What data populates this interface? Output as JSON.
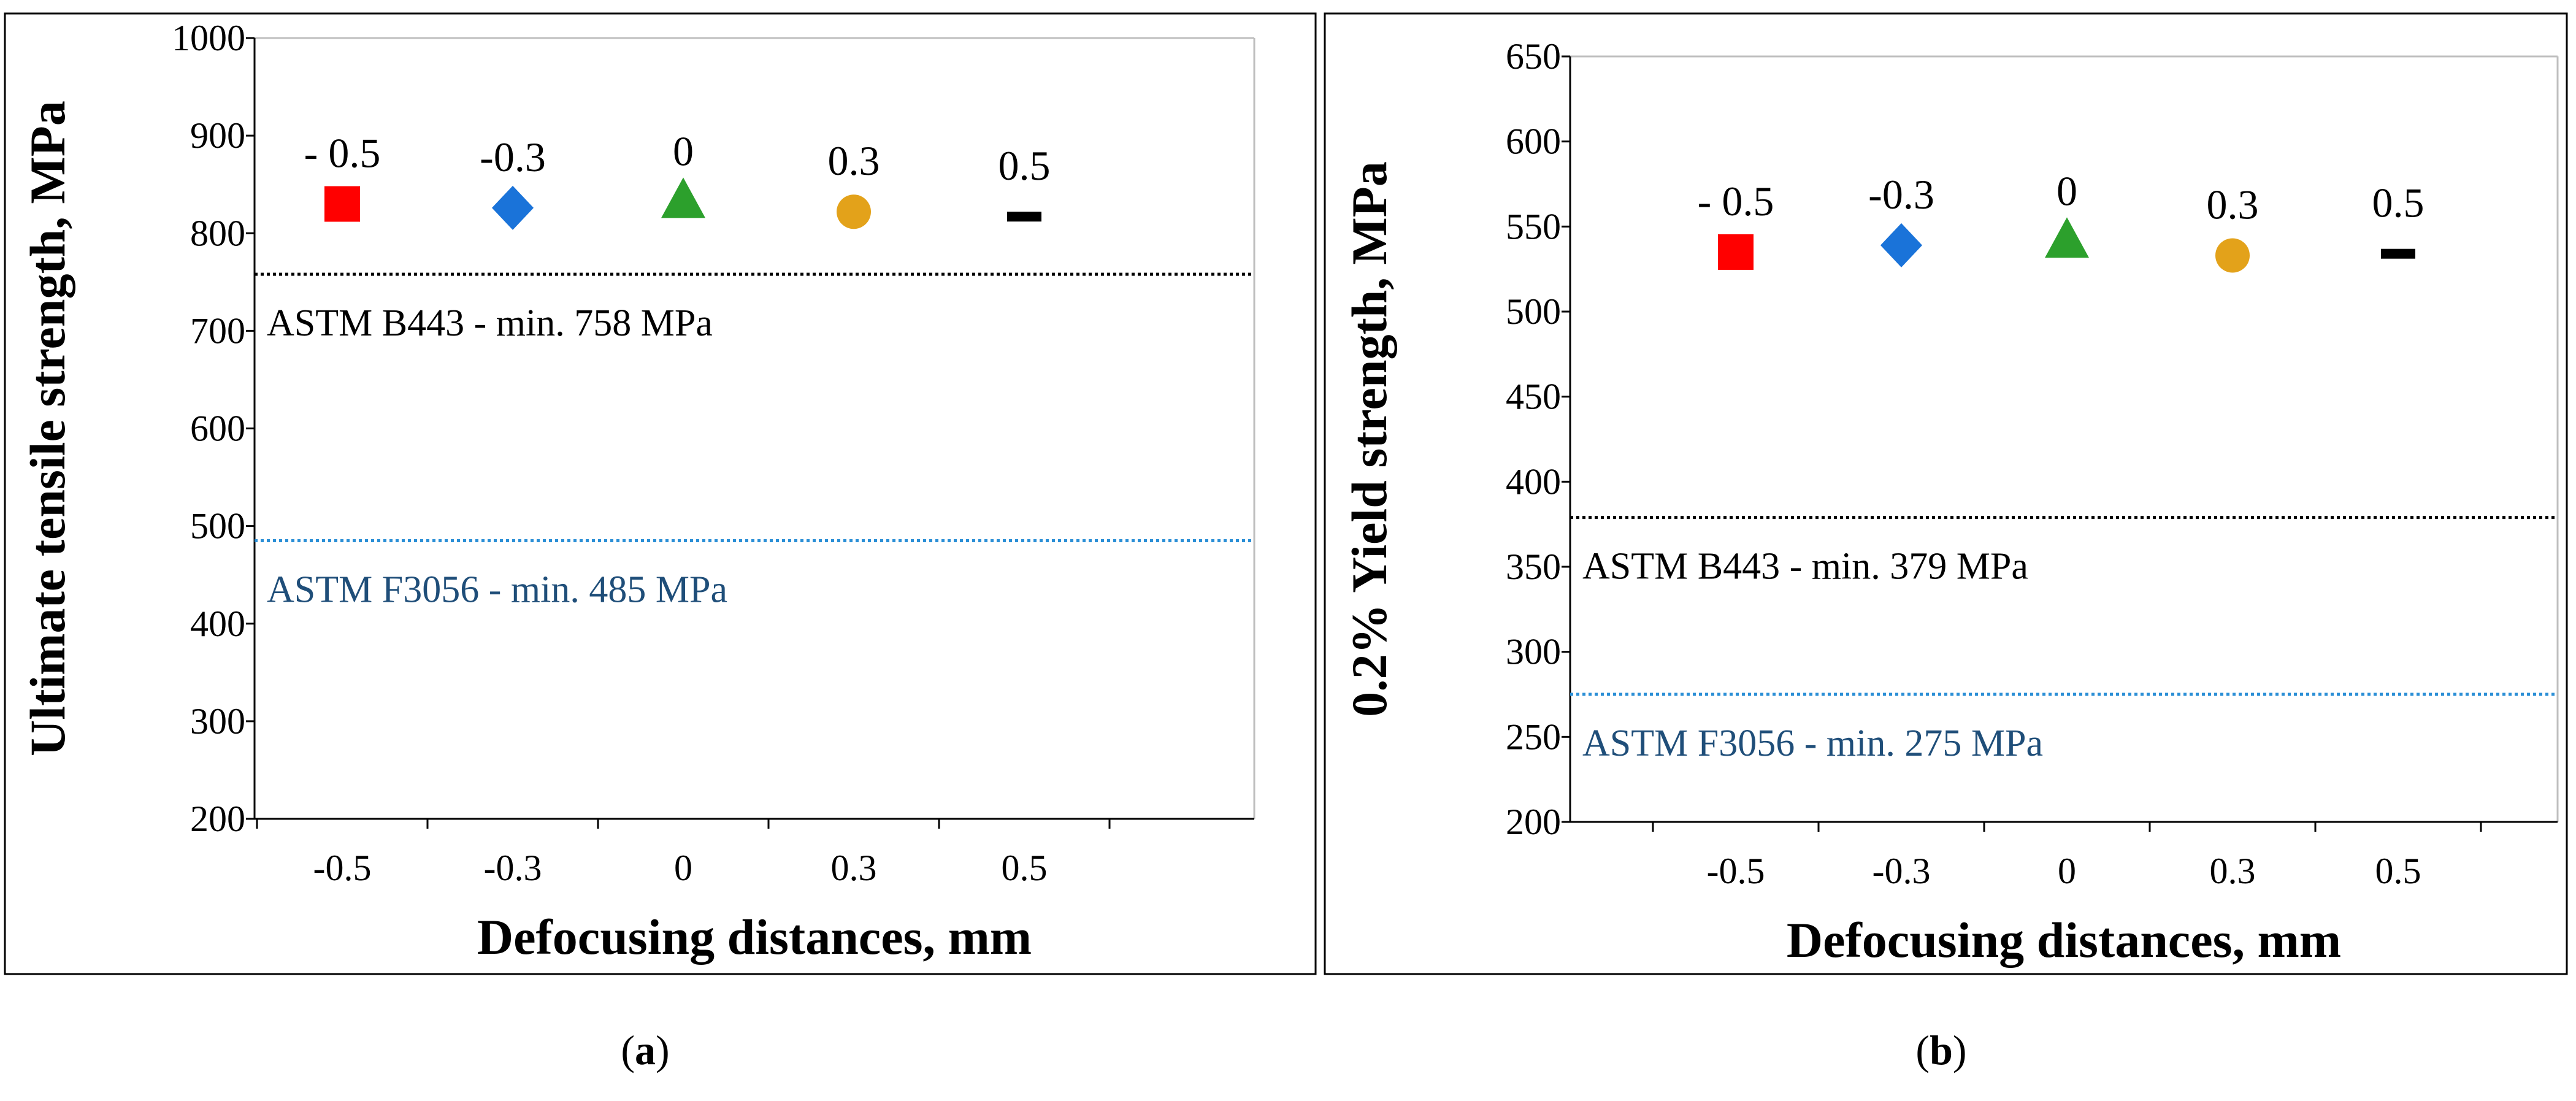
{
  "panels": [
    {
      "id": "a",
      "caption": "(a)",
      "caption_letter": "a",
      "chart_data": {
        "type": "scatter",
        "title": "",
        "xlabel": "Defocusing distances, mm",
        "ylabel": "Ultimate tensile strength, MPa",
        "ylim": [
          200,
          1000
        ],
        "ytick_step": 100,
        "yticks": [
          "200",
          "300",
          "400",
          "500",
          "600",
          "700",
          "800",
          "900",
          "1000"
        ],
        "categories": [
          "-0.5",
          "-0.3",
          "0",
          "0.3",
          "0.5"
        ],
        "grid": false,
        "series": [
          {
            "label": "- 0.5",
            "x": -0.5,
            "y": 830,
            "marker": "square",
            "color": "#ff0000"
          },
          {
            "label": "-0.3",
            "x": -0.3,
            "y": 826,
            "marker": "diamond",
            "color": "#1a73d9"
          },
          {
            "label": "0",
            "x": 0,
            "y": 832,
            "marker": "triangle",
            "color": "#2ca02c"
          },
          {
            "label": "0.3",
            "x": 0.3,
            "y": 822,
            "marker": "circle",
            "color": "#e3a21a"
          },
          {
            "label": "0.5",
            "x": 0.5,
            "y": 817,
            "marker": "dash",
            "color": "#000000"
          }
        ],
        "reference_lines": [
          {
            "y": 758,
            "label": "ASTM B443 - min. 758 MPa",
            "color": "#000000"
          },
          {
            "y": 485,
            "label": "ASTM F3056 - min. 485 MPa",
            "color": "#2b8fd6",
            "text_color": "#1f4e79"
          }
        ]
      }
    },
    {
      "id": "b",
      "caption": "(b)",
      "caption_letter": "b",
      "chart_data": {
        "type": "scatter",
        "title": "",
        "xlabel": "Defocusing distances, mm",
        "ylabel": "0.2% Yield strength, MPa",
        "ylim": [
          200,
          650
        ],
        "ytick_step": 50,
        "yticks": [
          "200",
          "250",
          "300",
          "350",
          "400",
          "450",
          "500",
          "550",
          "600",
          "650"
        ],
        "categories": [
          "-0.5",
          "-0.3",
          "0",
          "0.3",
          "0.5"
        ],
        "grid": false,
        "series": [
          {
            "label": "- 0.5",
            "x": -0.5,
            "y": 535,
            "marker": "square",
            "color": "#ff0000"
          },
          {
            "label": "-0.3",
            "x": -0.3,
            "y": 539,
            "marker": "diamond",
            "color": "#1a73d9"
          },
          {
            "label": "0",
            "x": 0,
            "y": 541,
            "marker": "triangle",
            "color": "#2ca02c"
          },
          {
            "label": "0.3",
            "x": 0.3,
            "y": 533,
            "marker": "circle",
            "color": "#e3a21a"
          },
          {
            "label": "0.5",
            "x": 0.5,
            "y": 534,
            "marker": "dash",
            "color": "#000000"
          }
        ],
        "reference_lines": [
          {
            "y": 379,
            "label": "ASTM B443 - min. 379 MPa",
            "color": "#000000"
          },
          {
            "y": 275,
            "label": "ASTM F3056 - min. 275 MPa",
            "color": "#2b8fd6",
            "text_color": "#1f4e79"
          }
        ]
      }
    }
  ]
}
